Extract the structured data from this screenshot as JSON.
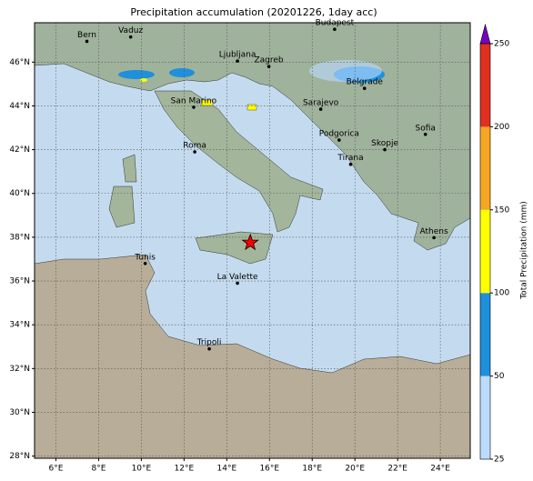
{
  "chart_data": {
    "type": "map",
    "title": "Precipitation accumulation (20201226, 1day acc)",
    "xlim": [
      5,
      25.4
    ],
    "ylim": [
      27.9,
      47.8
    ],
    "xticks": [
      {
        "value": 6,
        "label": "6°E"
      },
      {
        "value": 8,
        "label": "8°E"
      },
      {
        "value": 10,
        "label": "10°E"
      },
      {
        "value": 12,
        "label": "12°E"
      },
      {
        "value": 14,
        "label": "14°E"
      },
      {
        "value": 16,
        "label": "16°E"
      },
      {
        "value": 18,
        "label": "18°E"
      },
      {
        "value": 20,
        "label": "20°E"
      },
      {
        "value": 22,
        "label": "22°E"
      },
      {
        "value": 24,
        "label": "24°E"
      }
    ],
    "yticks": [
      {
        "value": 28,
        "label": "28°N"
      },
      {
        "value": 30,
        "label": "30°N"
      },
      {
        "value": 32,
        "label": "32°N"
      },
      {
        "value": 34,
        "label": "34°N"
      },
      {
        "value": 36,
        "label": "36°N"
      },
      {
        "value": 38,
        "label": "38°N"
      },
      {
        "value": 40,
        "label": "40°N"
      },
      {
        "value": 42,
        "label": "42°N"
      },
      {
        "value": 44,
        "label": "44°N"
      },
      {
        "value": 46,
        "label": "46°N"
      }
    ],
    "grid": true,
    "cities": [
      {
        "name": "Bern",
        "lon": 7.45,
        "lat": 46.95
      },
      {
        "name": "Vaduz",
        "lon": 9.5,
        "lat": 47.15
      },
      {
        "name": "Budapest",
        "lon": 19.05,
        "lat": 47.5
      },
      {
        "name": "Ljubljana",
        "lon": 14.5,
        "lat": 46.05
      },
      {
        "name": "Zagreb",
        "lon": 15.97,
        "lat": 45.8
      },
      {
        "name": "Belgrade",
        "lon": 20.45,
        "lat": 44.8
      },
      {
        "name": "San Marino",
        "lon": 12.45,
        "lat": 43.94
      },
      {
        "name": "Sarajevo",
        "lon": 18.4,
        "lat": 43.85
      },
      {
        "name": "Sofia",
        "lon": 23.3,
        "lat": 42.7
      },
      {
        "name": "Roma",
        "lon": 12.5,
        "lat": 41.9
      },
      {
        "name": "Podgorica",
        "lon": 19.26,
        "lat": 42.44
      },
      {
        "name": "Skopje",
        "lon": 21.4,
        "lat": 42.0
      },
      {
        "name": "Tirana",
        "lon": 19.8,
        "lat": 41.33
      },
      {
        "name": "Athens",
        "lon": 23.7,
        "lat": 37.98
      },
      {
        "name": "Tunis",
        "lon": 10.18,
        "lat": 36.8
      },
      {
        "name": "La Valette",
        "lon": 14.5,
        "lat": 35.9
      },
      {
        "name": "Tripoli",
        "lon": 13.18,
        "lat": 32.9
      }
    ],
    "star": {
      "lon": 15.1,
      "lat": 37.75,
      "color": "#ff0000"
    },
    "colorbar": {
      "label": "Total Precipitation (mm)",
      "levels": [
        25,
        50,
        100,
        150,
        200,
        250
      ],
      "colors": [
        "#bcdcff",
        "#1e90dc",
        "#ffff00",
        "#f5a623",
        "#e03020"
      ],
      "extend_color": "#7a00c0"
    }
  }
}
